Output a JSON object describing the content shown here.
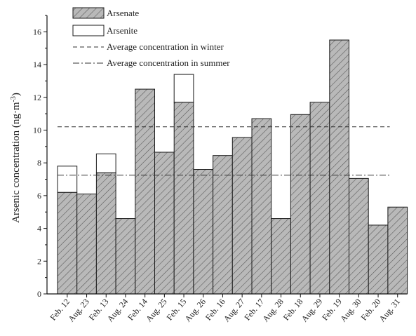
{
  "chart_data": {
    "type": "bar",
    "stacked": true,
    "categories": [
      "Feb. 12",
      "Aug. 23",
      "Feb. 13",
      "Aug. 24",
      "Feb. 14",
      "Aug. 25",
      "Feb. 15",
      "Aug. 26",
      "Feb. 16",
      "Aug. 27",
      "Feb. 17",
      "Aug. 28",
      "Feb. 18",
      "Aug. 29",
      "Feb. 19",
      "Aug. 30",
      "Feb. 20",
      "Aug. 31"
    ],
    "series": [
      {
        "name": "Arsenate",
        "pattern": "hatched",
        "values": [
          6.2,
          6.1,
          7.4,
          4.6,
          12.5,
          8.65,
          11.7,
          7.6,
          8.45,
          9.55,
          10.7,
          4.6,
          10.95,
          11.7,
          15.5,
          7.05,
          4.2,
          5.3
        ]
      },
      {
        "name": "Arsenite",
        "pattern": "open",
        "values": [
          1.6,
          0,
          1.15,
          0,
          0,
          0,
          1.7,
          0,
          0,
          0,
          0,
          0,
          0,
          0,
          0,
          0,
          0,
          0
        ]
      }
    ],
    "reference_lines": [
      {
        "name": "Average concentration in winter",
        "value": 10.2,
        "style": "dashed"
      },
      {
        "name": "Average concentration in summer",
        "value": 7.25,
        "style": "dash-dot"
      }
    ],
    "title": "",
    "xlabel": "",
    "ylabel": "Arsenic concentration (ng·m",
    "ylabel_superscript": "-3",
    "ylabel_close": ")",
    "ylim": [
      0,
      17
    ],
    "yticks": [
      0,
      2,
      4,
      6,
      8,
      10,
      12,
      14,
      16
    ],
    "grid": false,
    "legend_position": "top-left",
    "colors": {
      "arsenate_fill": "#b9b9b9",
      "hatch": "#555555",
      "outline": "#1a1a1a",
      "arsenite_fill": "#ffffff"
    }
  }
}
